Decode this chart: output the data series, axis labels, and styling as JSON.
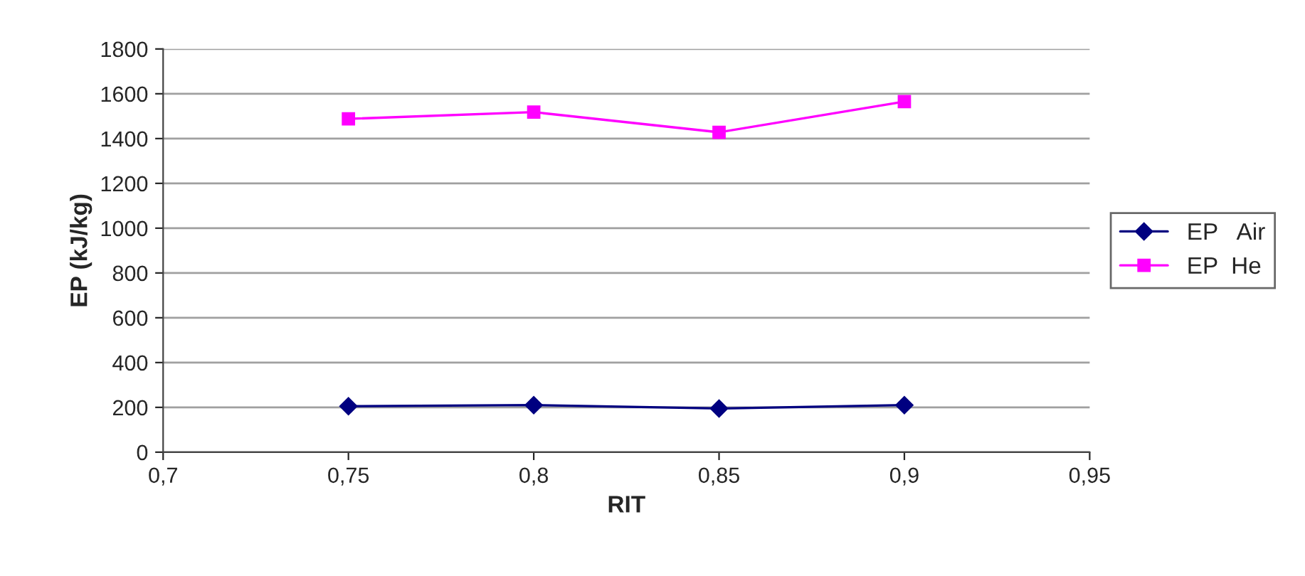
{
  "chart_data": {
    "type": "line",
    "xlabel": "RIT",
    "ylabel": "EP (kJ/kg)",
    "x": [
      0.75,
      0.8,
      0.85,
      0.9
    ],
    "series": [
      {
        "name": "EP   Air",
        "color": "#000080",
        "marker": "diamond",
        "values": [
          205,
          210,
          195,
          210
        ]
      },
      {
        "name": "EP  He",
        "color": "#ff00ff",
        "marker": "square",
        "values": [
          1488,
          1518,
          1428,
          1565
        ]
      }
    ],
    "xlim": [
      0.7,
      0.95
    ],
    "xticks": [
      {
        "value": 0.7,
        "label": "0,7"
      },
      {
        "value": 0.75,
        "label": "0,75"
      },
      {
        "value": 0.8,
        "label": "0,8"
      },
      {
        "value": 0.85,
        "label": "0,85"
      },
      {
        "value": 0.9,
        "label": "0,9"
      },
      {
        "value": 0.95,
        "label": "0,95"
      }
    ],
    "ylim": [
      0,
      1800
    ],
    "yticks": [
      0,
      200,
      400,
      600,
      800,
      1000,
      1200,
      1400,
      1600,
      1800
    ],
    "grid": "y",
    "legend": "right",
    "line_style": "solid"
  }
}
